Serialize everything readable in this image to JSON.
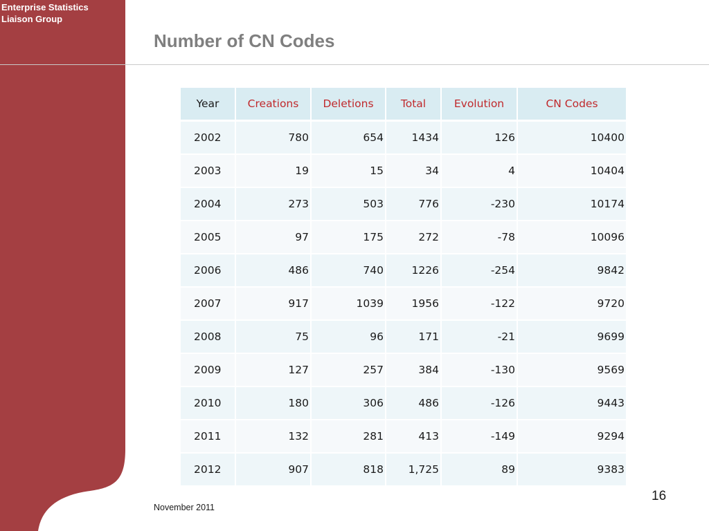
{
  "header": {
    "org_line1": "Enterprise Statistics",
    "org_line2": "Liaison Group",
    "title": "Number of CN Codes"
  },
  "colors": {
    "sidebar": "#a43f42",
    "accent_text": "#c0292c",
    "title_text": "#7f7f7f",
    "table_header_bg": "#d9ecf2",
    "table_row_bg": "#eef6f9"
  },
  "table": {
    "headers": [
      "Year",
      "Creations",
      "Deletions",
      "Total",
      "Evolution",
      "CN Codes"
    ],
    "rows": [
      [
        "2002",
        "780",
        "654",
        "1434",
        "126",
        "10400"
      ],
      [
        "2003",
        "19",
        "15",
        "34",
        "4",
        "10404"
      ],
      [
        "2004",
        "273",
        "503",
        "776",
        "-230",
        "10174"
      ],
      [
        "2005",
        "97",
        "175",
        "272",
        "-78",
        "10096"
      ],
      [
        "2006",
        "486",
        "740",
        "1226",
        "-254",
        "9842"
      ],
      [
        "2007",
        "917",
        "1039",
        "1956",
        "-122",
        "9720"
      ],
      [
        "2008",
        "75",
        "96",
        "171",
        "-21",
        "9699"
      ],
      [
        "2009",
        "127",
        "257",
        "384",
        "-130",
        "9569"
      ],
      [
        "2010",
        "180",
        "306",
        "486",
        "-126",
        "9443"
      ],
      [
        "2011",
        "132",
        "281",
        "413",
        "-149",
        "9294"
      ],
      [
        "2012",
        "907",
        "818",
        "1,725",
        "89",
        "9383"
      ]
    ]
  },
  "footer": {
    "page_number": "16",
    "date": "November 2011"
  }
}
